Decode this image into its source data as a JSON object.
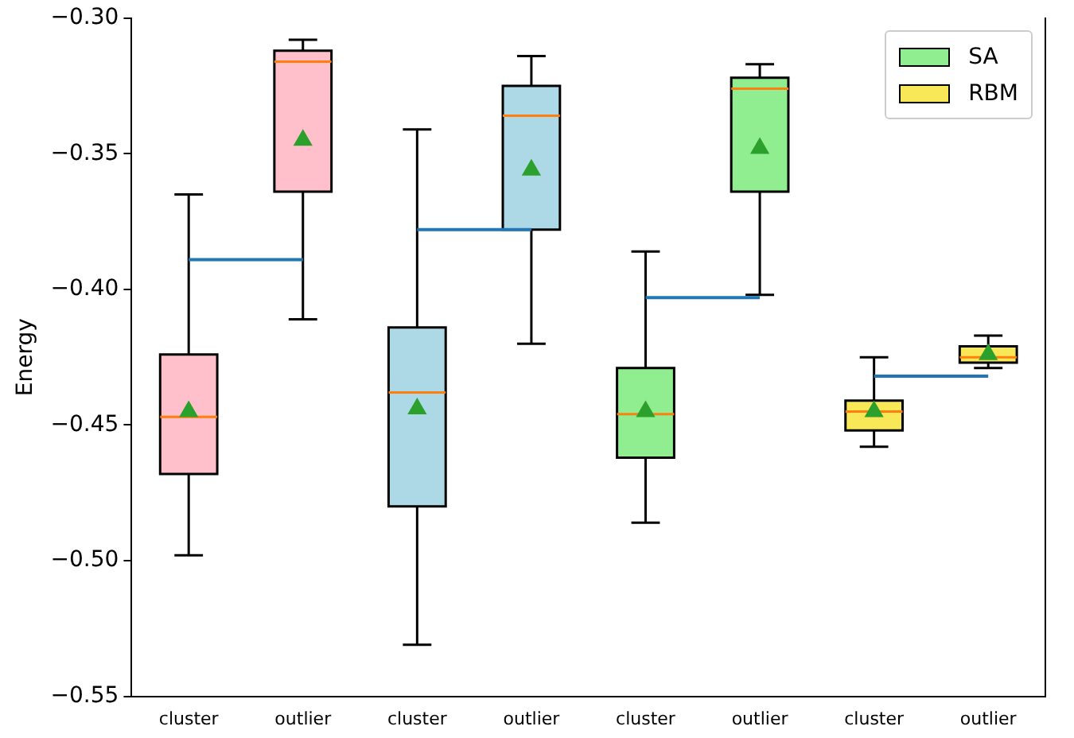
{
  "chart_data": {
    "type": "box",
    "ylabel": "Energy",
    "categories": [
      "cluster",
      "outlier",
      "cluster",
      "outlier",
      "cluster",
      "outlier",
      "cluster",
      "outlier"
    ],
    "ylim": [
      -0.55,
      -0.3
    ],
    "yticks": [
      {
        "value": -0.55,
        "label": "−0.55"
      },
      {
        "value": -0.5,
        "label": "−0.50"
      },
      {
        "value": -0.45,
        "label": "−0.45"
      },
      {
        "value": -0.4,
        "label": "−0.40"
      },
      {
        "value": -0.35,
        "label": "−0.35"
      },
      {
        "value": -0.3,
        "label": "−0.30"
      }
    ],
    "grid": false,
    "legend": "top right",
    "series": [
      {
        "type": "box",
        "marker": "triangle",
        "color": "#ffc0cb",
        "boxes": [
          {
            "low": -0.498,
            "q1": -0.468,
            "median": -0.447,
            "q3": -0.424,
            "high": -0.365,
            "mean": -0.445
          },
          {
            "low": -0.411,
            "q1": -0.364,
            "median": -0.316,
            "q3": -0.312,
            "high": -0.308,
            "mean": -0.345
          },
          null,
          null,
          null,
          null,
          null,
          null
        ]
      },
      {
        "type": "box",
        "marker": "triangle",
        "color": "#add8e6",
        "boxes": [
          null,
          null,
          {
            "low": -0.531,
            "q1": -0.48,
            "median": -0.438,
            "q3": -0.414,
            "high": -0.341,
            "mean": -0.444
          },
          {
            "low": -0.42,
            "q1": -0.378,
            "median": -0.336,
            "q3": -0.325,
            "high": -0.314,
            "mean": -0.356
          },
          null,
          null,
          null,
          null
        ]
      },
      {
        "type": "box",
        "marker": "triangle",
        "name": "SA",
        "color": "#90ee90",
        "boxes": [
          null,
          null,
          null,
          null,
          {
            "low": -0.486,
            "q1": -0.462,
            "median": -0.446,
            "q3": -0.429,
            "high": -0.386,
            "mean": -0.445
          },
          {
            "low": -0.402,
            "q1": -0.364,
            "median": -0.326,
            "q3": -0.322,
            "high": -0.317,
            "mean": -0.348
          },
          null,
          null
        ]
      },
      {
        "type": "box",
        "marker": "triangle",
        "name": "RBM",
        "color": "#f8e858",
        "boxes": [
          null,
          null,
          null,
          null,
          null,
          null,
          {
            "low": -0.458,
            "q1": -0.452,
            "median": -0.445,
            "q3": -0.441,
            "high": -0.425,
            "mean": -0.445
          },
          {
            "low": -0.429,
            "q1": -0.427,
            "median": -0.425,
            "q3": -0.421,
            "high": -0.417,
            "mean": -0.424
          }
        ]
      },
      {
        "type": "line",
        "color": "#1f77b4",
        "values": [
          -0.389,
          -0.389,
          null,
          null,
          null,
          null,
          null,
          null
        ]
      },
      {
        "type": "line",
        "color": "#1f77b4",
        "values": [
          null,
          null,
          -0.378,
          -0.378,
          null,
          null,
          null,
          null
        ]
      },
      {
        "type": "line",
        "color": "#1f77b4",
        "values": [
          null,
          null,
          null,
          null,
          -0.403,
          -0.403,
          null,
          null
        ]
      },
      {
        "type": "line",
        "color": "#1f77b4",
        "values": [
          null,
          null,
          null,
          null,
          null,
          null,
          -0.432,
          -0.432
        ]
      }
    ]
  }
}
